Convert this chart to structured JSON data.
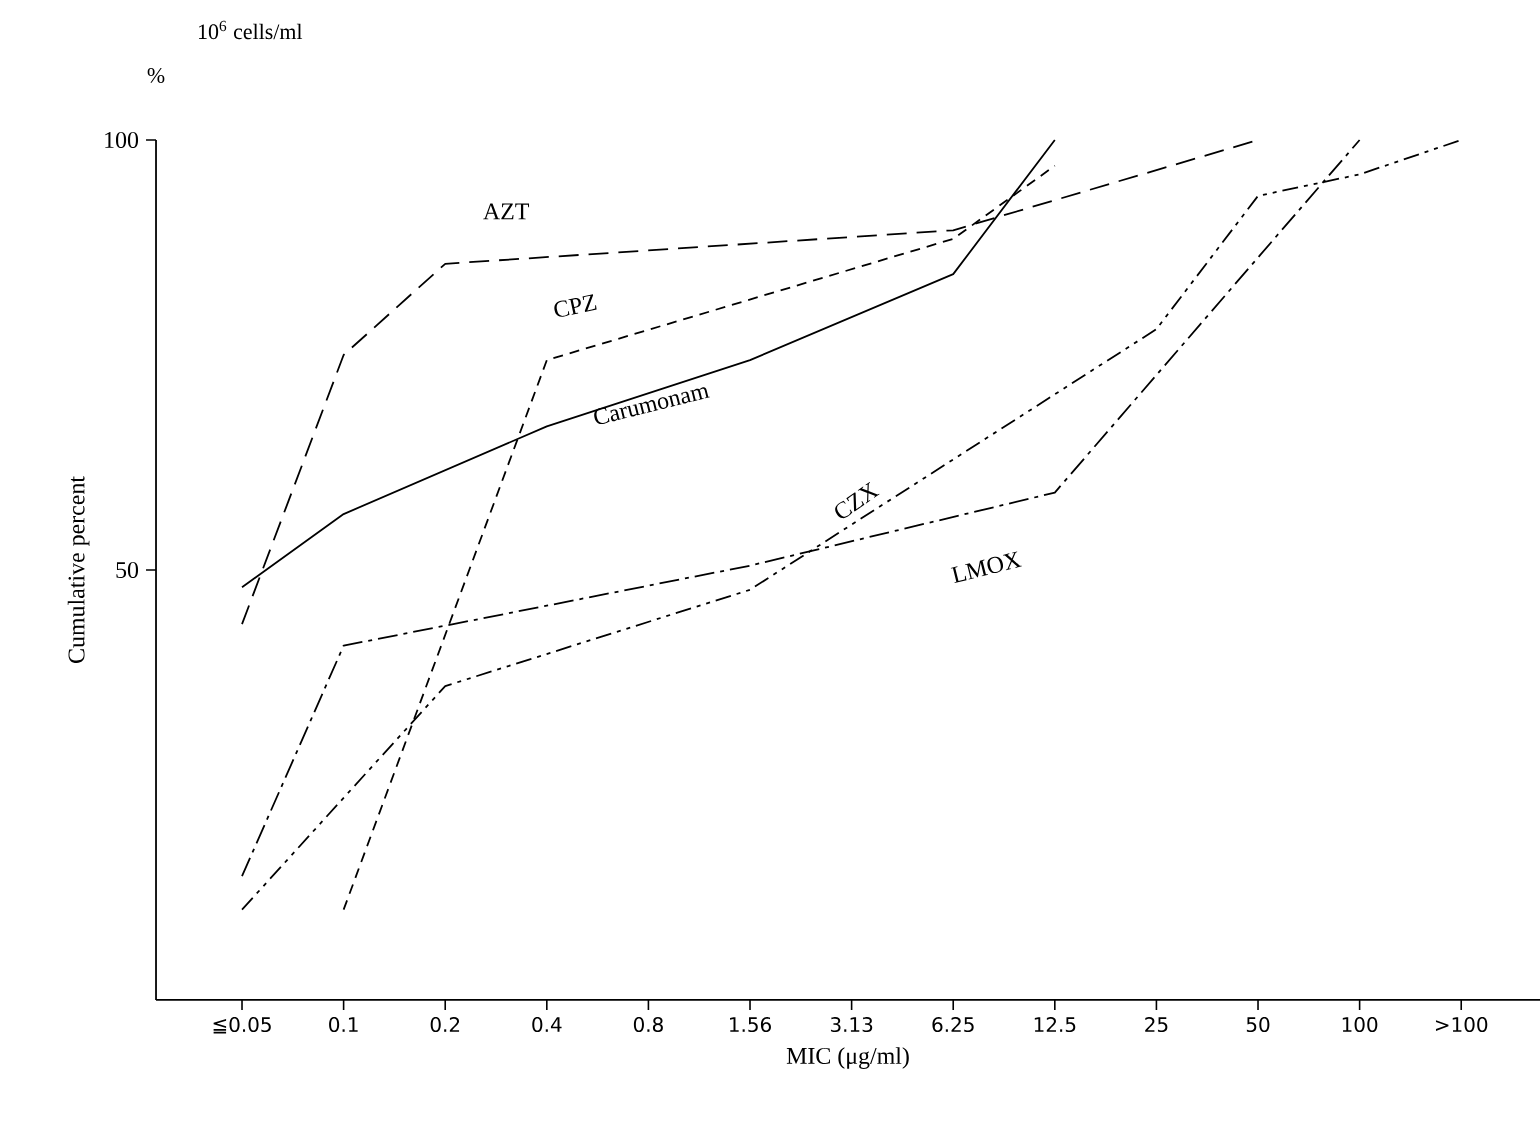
{
  "chart_data": {
    "type": "line",
    "xlabel": "MIC (μg/ml)",
    "ylabel": "Cumulative percent",
    "annotations": [
      "10$^{6}$ cells/ml",
      "%"
    ],
    "categories": [
      "≦0.05",
      "0.1",
      "0.2",
      "0.4",
      "0.8",
      "1.56",
      "3.13",
      "6.25",
      "12.5",
      "25",
      "50",
      "100",
      ">100"
    ],
    "ylim": [
      0,
      100
    ],
    "yticks": [
      50,
      100
    ],
    "series": [
      {
        "name": "AZT",
        "color": "#000000",
        "line_style": "long dashed",
        "values": [
          43.7,
          75,
          85.6,
          null,
          null,
          null,
          null,
          89.5,
          null,
          null,
          100,
          null,
          null
        ]
      },
      {
        "name": "CPZ",
        "color": "#000000",
        "line_style": "dashed",
        "values": [
          null,
          10.5,
          null,
          74.4,
          null,
          null,
          null,
          88.5,
          97,
          null,
          null,
          null,
          null
        ]
      },
      {
        "name": "Carumonam",
        "color": "#000000",
        "line_style": "solid",
        "values": [
          48,
          56.5,
          null,
          66.7,
          null,
          74.4,
          null,
          84.4,
          100,
          null,
          null,
          null,
          null
        ]
      },
      {
        "name": "CZX",
        "color": "#000000",
        "line_style": "dash-dot-dot",
        "values": [
          10.5,
          null,
          36.5,
          null,
          null,
          47.7,
          null,
          null,
          null,
          78,
          93.5,
          96,
          100
        ]
      },
      {
        "name": "LMOX",
        "color": "#000000",
        "line_style": "dash-dot",
        "values": [
          14.4,
          41.2,
          null,
          null,
          null,
          50.5,
          null,
          null,
          59,
          null,
          null,
          100,
          null
        ]
      }
    ]
  }
}
